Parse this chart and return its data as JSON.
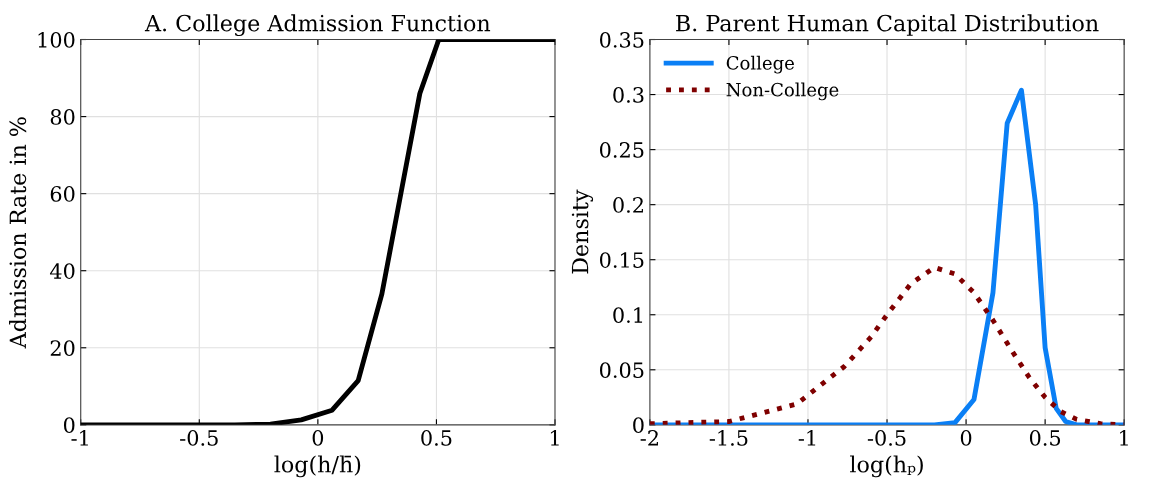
{
  "chart_data": [
    {
      "type": "line",
      "title": "A. College Admission Function",
      "xlabel": "log(h/h̄)",
      "ylabel": "Admission Rate in %",
      "xlim": [
        -1,
        1
      ],
      "ylim": [
        0,
        100
      ],
      "xticks": [
        -1,
        -0.5,
        0,
        0.5,
        1
      ],
      "yticks": [
        0,
        20,
        40,
        60,
        80,
        100
      ],
      "grid": true,
      "legend": false,
      "series": [
        {
          "color": "#000000",
          "line_style": "solid",
          "x": [
            -1,
            -0.6,
            -0.35,
            -0.2,
            -0.07,
            0.06,
            0.17,
            0.27,
            0.35,
            0.43,
            0.51,
            1
          ],
          "values": [
            0,
            0,
            0,
            0.2,
            1.3,
            3.8,
            11.5,
            34,
            60,
            86,
            100,
            100
          ]
        }
      ]
    },
    {
      "type": "line",
      "title": "B. Parent Human Capital Distribution",
      "xlabel": "log(hₚ)",
      "ylabel": "Density",
      "xlim": [
        -2,
        1
      ],
      "ylim": [
        0,
        0.35
      ],
      "xticks": [
        -2,
        -1.5,
        -1,
        -0.5,
        0,
        0.5,
        1
      ],
      "yticks": [
        0,
        0.05,
        0.1,
        0.15,
        0.2,
        0.25,
        0.3,
        0.35
      ],
      "grid": true,
      "legend": "top left",
      "series": [
        {
          "name": "College",
          "color": "#0a7ff5",
          "line_style": "solid",
          "x": [
            -2,
            -0.2,
            -0.07,
            0.05,
            0.17,
            0.26,
            0.35,
            0.44,
            0.5,
            0.57,
            0.63,
            0.7,
            1
          ],
          "values": [
            0,
            0,
            0.002,
            0.023,
            0.12,
            0.274,
            0.304,
            0.2,
            0.07,
            0.015,
            0.003,
            0,
            0
          ]
        },
        {
          "name": "Non-College",
          "color": "#7f0000",
          "line_style": "dotted",
          "x": [
            -2,
            -1.5,
            -1.07,
            -0.77,
            -0.6,
            -0.5,
            -0.35,
            -0.2,
            -0.07,
            0.05,
            0.17,
            0.3,
            0.4,
            0.5,
            0.6,
            0.7,
            0.85,
            1
          ],
          "values": [
            0.001,
            0.003,
            0.019,
            0.053,
            0.08,
            0.1,
            0.128,
            0.143,
            0.137,
            0.12,
            0.095,
            0.065,
            0.043,
            0.025,
            0.012,
            0.005,
            0.001,
            0
          ]
        }
      ]
    }
  ]
}
